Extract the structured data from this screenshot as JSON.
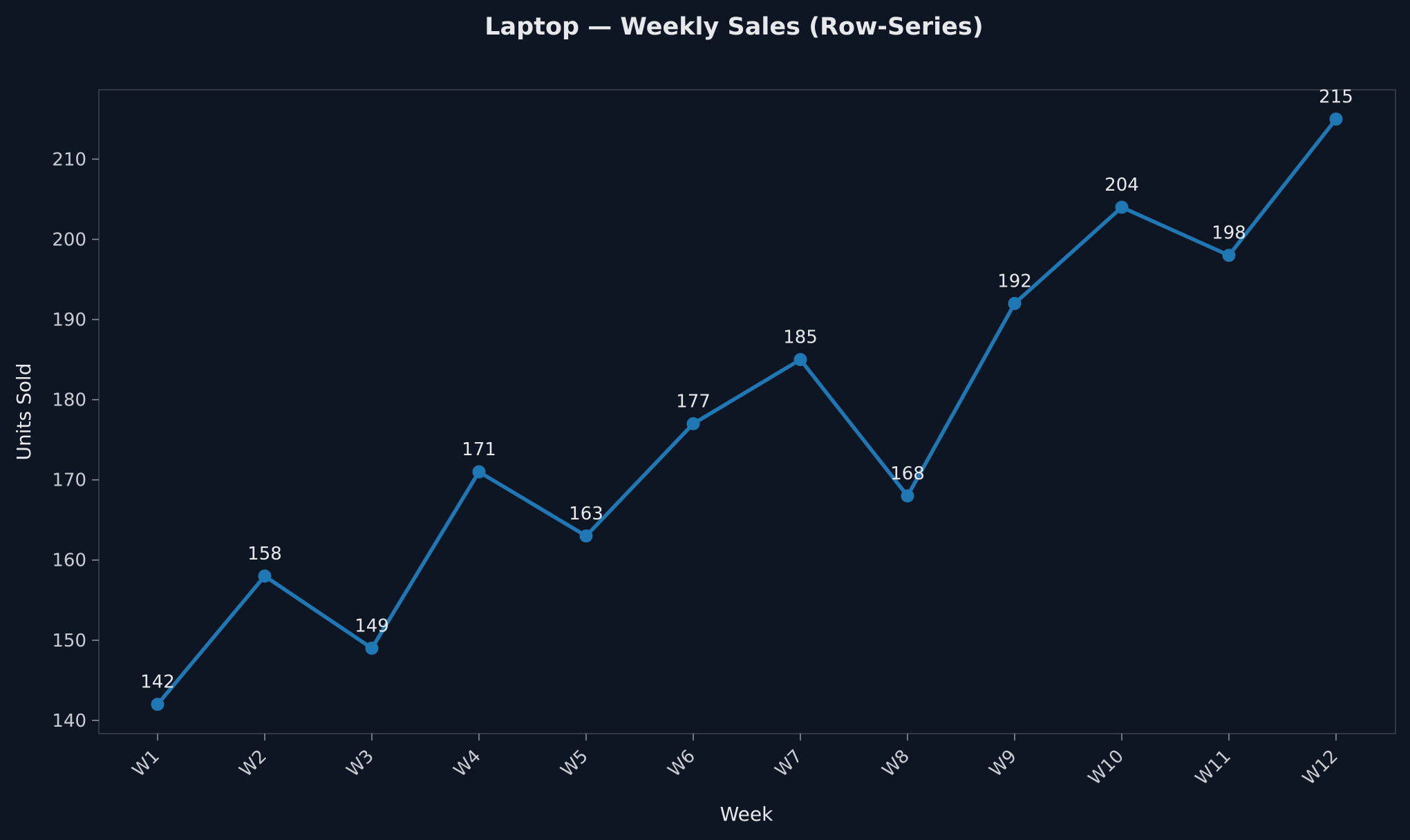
{
  "chart_data": {
    "type": "line",
    "title": "Laptop — Weekly Sales (Row-Series)",
    "xlabel": "Week",
    "ylabel": "Units Sold",
    "categories": [
      "W1",
      "W2",
      "W3",
      "W4",
      "W5",
      "W6",
      "W7",
      "W8",
      "W9",
      "W10",
      "W11",
      "W12"
    ],
    "series": [
      {
        "values": [
          142,
          158,
          149,
          171,
          163,
          177,
          185,
          168,
          192,
          204,
          198,
          215
        ]
      }
    ],
    "ylim": [
      138.35,
      218.65
    ],
    "yticks": [
      140,
      150,
      160,
      170,
      180,
      190,
      200,
      210
    ],
    "grid": false,
    "legend": "none",
    "data_labels": true,
    "colors": {
      "background": "#0f1623",
      "line": "#1f77b4",
      "frame": "#3c4250",
      "text": "#e6e8ec"
    }
  }
}
